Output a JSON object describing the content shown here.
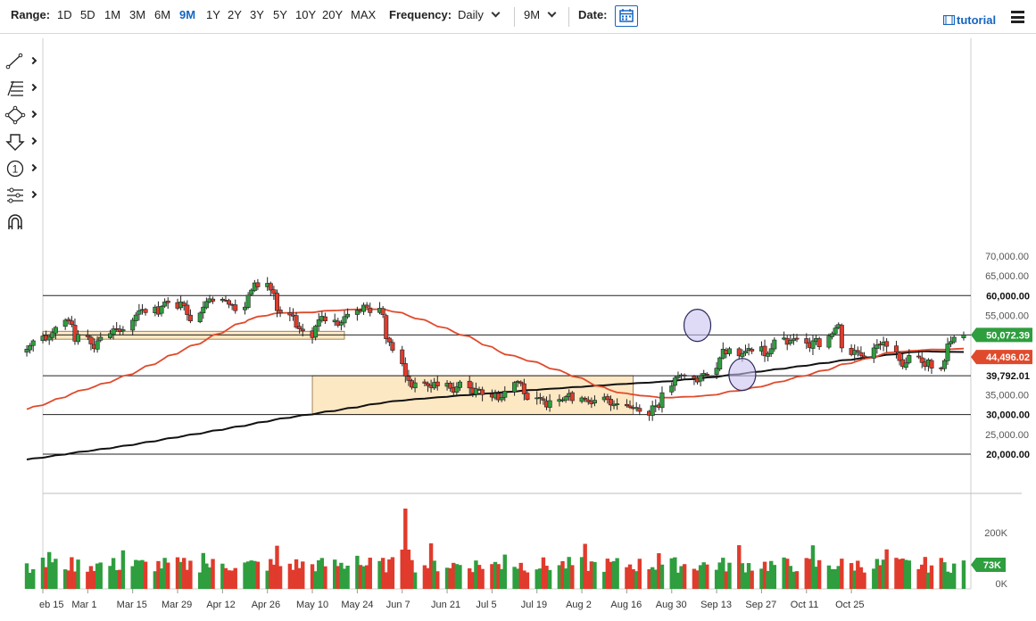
{
  "toolbar": {
    "range_label": "Range:",
    "ranges": [
      "1D",
      "5D",
      "1M",
      "3M",
      "6M",
      "9M",
      "1Y",
      "2Y",
      "3Y",
      "5Y",
      "10Y",
      "20Y",
      "MAX"
    ],
    "active_range": "9M",
    "frequency_label": "Frequency:",
    "frequency_value": "Daily",
    "period_value": "9M",
    "date_label": "Date:",
    "tutorial_label": "tutorial"
  },
  "colors": {
    "up": "#2e9e3e",
    "down": "#e03b2c",
    "ma_fast": "#e04a2c",
    "ma_slow": "#111111",
    "zone_fill": "#fde8c4",
    "zone_stroke": "#8a6a3a",
    "highlight_circle": "#c9c2f0",
    "accent": "#1565c0"
  },
  "chart_data": {
    "type": "candlestick",
    "y_axis_ticks": [
      "70,000.00",
      "65,000.00",
      "60,000.00",
      "55,000.00",
      "50,000.00",
      "45,000.00",
      "40,000.00",
      "35,000.00",
      "30,000.00",
      "25,000.00",
      "20,000.00"
    ],
    "ylim": [
      15000,
      72000
    ],
    "x_axis_ticks": [
      "eb 15",
      "Mar 1",
      "Mar 15",
      "Mar 29",
      "Apr 12",
      "Apr 26",
      "May 10",
      "May 24",
      "Jun 7",
      "Jun 21",
      "Jul 5",
      "Jul 19",
      "Aug 2",
      "Aug 16",
      "Aug 30",
      "Sep 13",
      "Sep 27",
      "Oct 11",
      "Oct 25"
    ],
    "horizontal_levels": [
      {
        "value": 60000,
        "label": "60,000.00"
      },
      {
        "value": 50072.39,
        "label": "50,072.39"
      },
      {
        "value": 39792.01,
        "label": "39,792.01"
      },
      {
        "value": 30000,
        "label": "30,000.00"
      },
      {
        "value": 20000,
        "label": "20,000.00"
      }
    ],
    "moving_average_fast_last": {
      "value": 44496.02,
      "label": "44,496.02"
    },
    "last_price": 50072.39,
    "support_zones": [
      {
        "from": "Feb 10",
        "to": "May 20",
        "low": 49000,
        "high": 51000
      },
      {
        "from": "Feb 10",
        "to": "Feb 15",
        "low": 30000,
        "high": 39800
      },
      {
        "from": "May 10",
        "to": "Aug 18",
        "low": 30000,
        "high": 39800
      }
    ],
    "highlight_circles": [
      {
        "date": "Sep 7",
        "value": 52500
      },
      {
        "date": "Sep 21",
        "value": 40100
      }
    ],
    "closes": [
      46500,
      47400,
      48600,
      49800,
      48800,
      49600,
      50700,
      52000,
      53800,
      53600,
      52700,
      48500,
      50200,
      49600,
      47800,
      46600,
      48600,
      49500,
      50400,
      51600,
      51600,
      50900,
      51400,
      53800,
      55100,
      56200,
      56500,
      55700,
      57100,
      55300,
      57300,
      58400,
      58200,
      56800,
      58400,
      57500,
      55200,
      53600,
      55600,
      57100,
      58500,
      59200,
      58600,
      59100,
      58800,
      57800,
      57700,
      56200,
      57100,
      60100,
      61400,
      63200,
      62200,
      63100,
      61400,
      60500,
      56200,
      55600,
      55100,
      54800,
      52000,
      51600,
      51100,
      49400,
      52300,
      53900,
      54800,
      53600,
      53800,
      52500,
      53200,
      54700,
      55300,
      56300,
      56000,
      57600,
      57100,
      55700,
      56800,
      55200,
      49100,
      48300,
      46200,
      42800,
      39700,
      38600,
      36900,
      38000,
      37900,
      37300,
      36800,
      38100,
      37200,
      37900,
      36600,
      35600,
      37000,
      38200,
      36700,
      35300,
      36500,
      36300,
      35000,
      34400,
      35300,
      33700,
      34300,
      35900,
      38100,
      38400,
      37800,
      35200,
      33800,
      34200,
      34200,
      33600,
      31900,
      33500,
      33800,
      33700,
      34500,
      35300,
      33500,
      34200,
      33900,
      33200,
      32700,
      33600,
      34400,
      33900,
      32400,
      32600,
      32700,
      32200,
      31800,
      31500,
      31800,
      30800,
      29800,
      32200,
      32200,
      31800,
      35500,
      37200,
      39200,
      39700,
      40000,
      39800,
      39100,
      38200,
      39800,
      40400,
      40000,
      41700,
      44300,
      46500,
      45300,
      46600,
      44800,
      45400,
      46000,
      46700,
      46000,
      47100,
      44800,
      45400,
      46600,
      48800,
      49300,
      47700,
      48700,
      49100,
      49000,
      48000,
      46900,
      48600,
      49200,
      47100,
      49800,
      50400,
      51800,
      52700,
      46800,
      45100,
      46200,
      45800,
      44900,
      44400,
      46800,
      47600,
      47500,
      48300,
      47200,
      45800,
      43600,
      42100,
      43000,
      44900,
      44500,
      43100,
      42100,
      43800,
      41700,
      41500,
      43600,
      47800,
      48400,
      49500,
      50072
    ],
    "volume_axis_ticks": [
      "200K",
      "0K"
    ],
    "last_volume_label": "73K"
  }
}
